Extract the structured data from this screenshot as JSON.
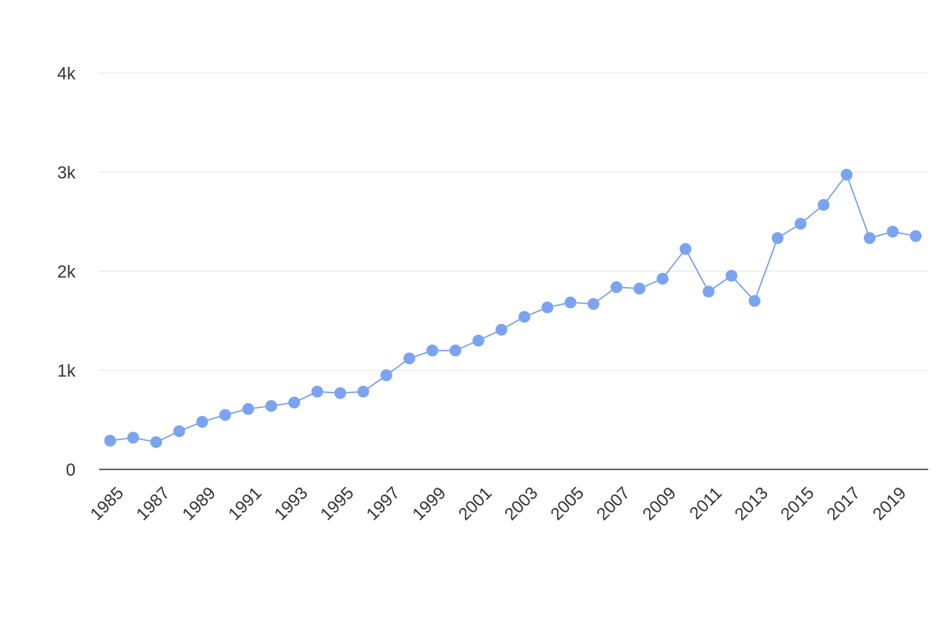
{
  "colors": {
    "series": "#7ba3f0",
    "series_line": "#6f9be8",
    "grid": "#e3e3e3",
    "axis": "#333333",
    "text": "#333333",
    "background": "#ffffff"
  },
  "chart_data": {
    "type": "line",
    "title": "",
    "xlabel": "",
    "ylabel": "",
    "ylim": [
      0,
      4000
    ],
    "y_ticks": [
      {
        "value": 0,
        "label": "0"
      },
      {
        "value": 1000,
        "label": "1k"
      },
      {
        "value": 2000,
        "label": "2k"
      },
      {
        "value": 3000,
        "label": "3k"
      },
      {
        "value": 4000,
        "label": "4k"
      }
    ],
    "x_tick_labels": [
      "1985",
      "1987",
      "1989",
      "1991",
      "1993",
      "1995",
      "1997",
      "1999",
      "2001",
      "2003",
      "2005",
      "2007",
      "2009",
      "2011",
      "2013",
      "2015",
      "2017",
      "2019"
    ],
    "grid": true,
    "markers": true,
    "legend": "none",
    "x": [
      1985,
      1986,
      1987,
      1988,
      1989,
      1990,
      1991,
      1992,
      1993,
      1994,
      1995,
      1996,
      1997,
      1998,
      1999,
      2000,
      2001,
      2002,
      2003,
      2004,
      2005,
      2006,
      2007,
      2008,
      2009,
      2010,
      2011,
      2012,
      2013,
      2014,
      2015,
      2016,
      2017,
      2018,
      2019,
      2020
    ],
    "series": [
      {
        "values": [
          290,
          320,
          275,
          385,
          480,
          550,
          610,
          640,
          675,
          785,
          770,
          785,
          950,
          1120,
          1200,
          1200,
          1300,
          1410,
          1540,
          1635,
          1685,
          1670,
          1840,
          1825,
          1925,
          2225,
          1795,
          1955,
          1700,
          2335,
          2480,
          2670,
          2975,
          2335,
          2400,
          2355
        ]
      }
    ]
  }
}
